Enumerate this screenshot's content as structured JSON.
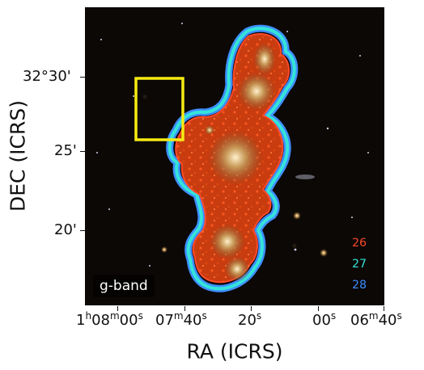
{
  "figure": {
    "xlabel": "RA (ICRS)",
    "ylabel": "DEC (ICRS)",
    "band_label": "g-band",
    "legend": [
      {
        "label": "26",
        "color": "#ff4a2a"
      },
      {
        "label": "27",
        "color": "#35e4d8"
      },
      {
        "label": "28",
        "color": "#3d8fff"
      }
    ],
    "y_ticks": [
      {
        "text": "32°30'"
      },
      {
        "text": "25'"
      },
      {
        "text": "20'"
      }
    ],
    "x_ticks": {
      "t1": {
        "a": "1",
        "h": "h",
        "b": "08",
        "m": "m",
        "c": "00",
        "s": "s"
      },
      "t2": {
        "a": "07",
        "m": "m",
        "b": "40",
        "s": "s"
      },
      "t3": {
        "a": "20",
        "s": "s"
      },
      "t4": {
        "a": "00",
        "s": "s"
      },
      "t5": {
        "a": "06",
        "m": "m",
        "b": "40",
        "s": "s"
      }
    },
    "colors": {
      "isophote_26": "#ff4a2a",
      "isophote_27": "#35e4d8",
      "isophote_28": "#3d8fff",
      "highlight_box": "#f6ea12",
      "sky_background": "#0b0806"
    }
  }
}
